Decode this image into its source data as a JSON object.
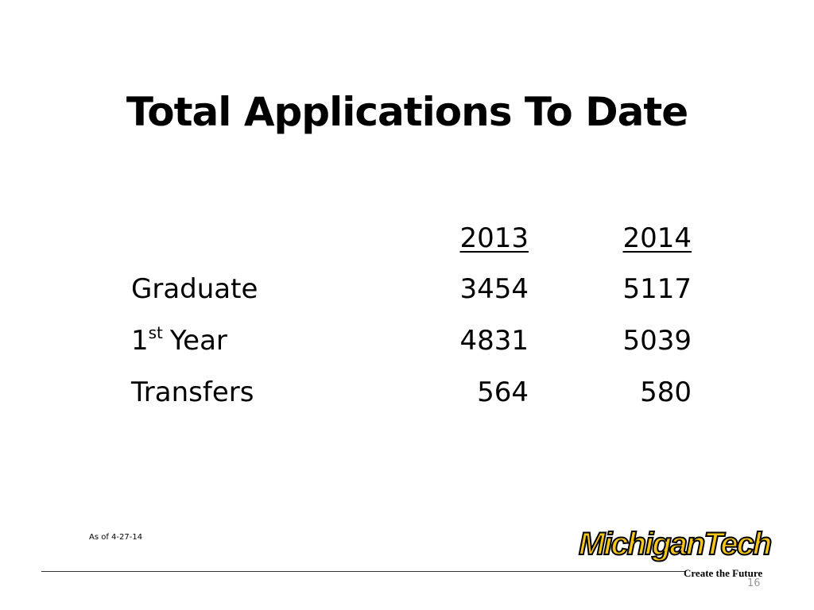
{
  "header": {
    "title": "Total Applications To Date"
  },
  "table": {
    "columns": [
      "2013",
      "2014"
    ],
    "rows": [
      {
        "label": "Graduate",
        "values": [
          3454,
          5117
        ]
      },
      {
        "label": "1",
        "label_sup": "st",
        "label_rest": "Year",
        "values": [
          4831,
          5039
        ]
      },
      {
        "label": "Transfers",
        "values": [
          564,
          580
        ]
      }
    ]
  },
  "footnote": "As of 4-27-14",
  "logo": {
    "name": "MichiganTech",
    "tagline": "Create the Future"
  },
  "page_number": "16"
}
